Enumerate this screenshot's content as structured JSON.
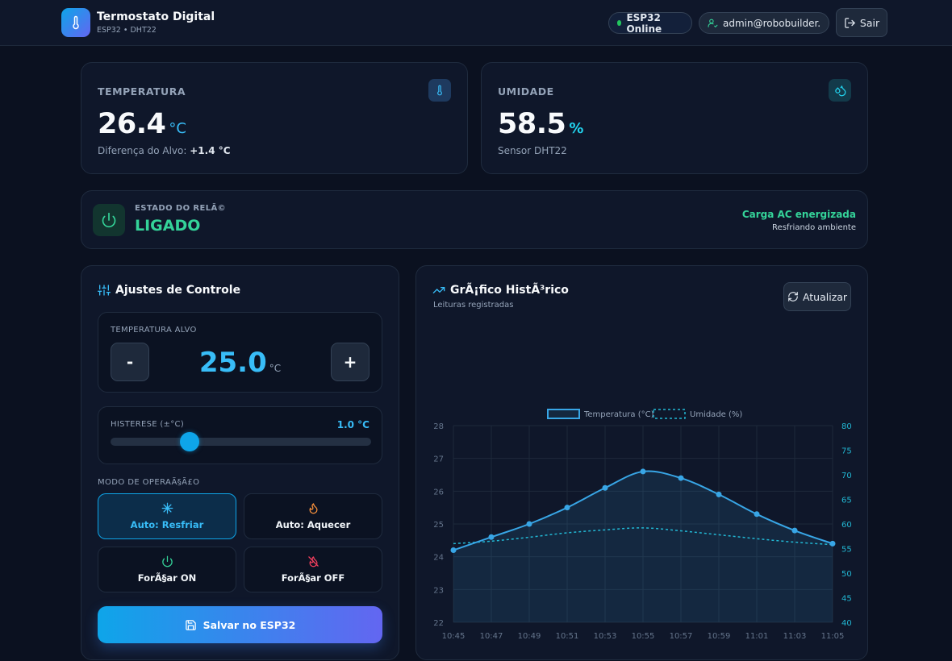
{
  "header": {
    "title": "Termostato Digital",
    "subtitle": "ESP32 • DHT22",
    "status": "ESP32 Online",
    "user": "admin@robobuilder...",
    "logout_label": "Sair"
  },
  "temperature": {
    "label": "TEMPERATURA",
    "value": "26.4",
    "unit": "°C",
    "note_prefix": "Diferença do Alvo:",
    "note_value": "+1.4 °C"
  },
  "humidity": {
    "label": "UMIDADE",
    "value": "58.5",
    "unit": "%",
    "note": "Sensor DHT22"
  },
  "relay": {
    "label": "ESTADO DO RELÃ©",
    "state": "LIGADO",
    "load": "Carga AC energizada",
    "mode": "Resfriando ambiente"
  },
  "controls": {
    "title": "Ajustes de Controle",
    "target_label": "TEMPERATURA ALVO",
    "target_value": "25.0",
    "target_unit": "°C",
    "minus_label": "-",
    "plus_label": "+",
    "hysteresis_label": "HISTERESE (±°C)",
    "hysteresis_value": "1.0 °C",
    "hysteresis_level": 1.0,
    "hysteresis_min": 0,
    "hysteresis_max": 5,
    "mode_label": "MODO DE OPERAÃ§Ã£O",
    "modes": [
      {
        "label": "Auto: Resfriar",
        "icon": "snowflake-icon",
        "active": true
      },
      {
        "label": "Auto: Aquecer",
        "icon": "flame-icon",
        "active": false
      },
      {
        "label": "ForÃ§ar ON",
        "icon": "power-icon",
        "active": false
      },
      {
        "label": "ForÃ§ar OFF",
        "icon": "flame-off-icon",
        "active": false
      }
    ],
    "save_label": "Salvar no ESP32"
  },
  "chart_panel": {
    "title": "GrÃ¡fico HistÃ³rico",
    "subtitle": "Leituras registradas",
    "refresh_label": "Atualizar"
  },
  "chart_data": {
    "type": "line",
    "x": [
      "10:45",
      "10:47",
      "10:49",
      "10:51",
      "10:53",
      "10:55",
      "10:57",
      "10:59",
      "11:01",
      "11:03",
      "11:05"
    ],
    "series": [
      {
        "name": "Temperatura (°C)",
        "axis": "left",
        "color": "#38a6e6",
        "style": "solid",
        "values": [
          24.2,
          24.6,
          25.0,
          25.5,
          26.1,
          26.6,
          26.4,
          25.9,
          25.3,
          24.8,
          24.4
        ]
      },
      {
        "name": "Umidade (%)",
        "axis": "right",
        "color": "#22b8d4",
        "style": "dashed",
        "values": [
          56.0,
          56.5,
          57.3,
          58.2,
          58.8,
          59.2,
          58.6,
          57.8,
          57.0,
          56.3,
          55.8
        ]
      }
    ],
    "y_left": {
      "ylim": [
        22,
        28
      ],
      "ticks": [
        22,
        23,
        24,
        25,
        26,
        27,
        28
      ]
    },
    "y_right": {
      "ylim": [
        40,
        80
      ],
      "ticks": [
        40,
        45,
        50,
        55,
        60,
        65,
        70,
        75,
        80
      ]
    },
    "legend": "top-center",
    "grid": true
  }
}
